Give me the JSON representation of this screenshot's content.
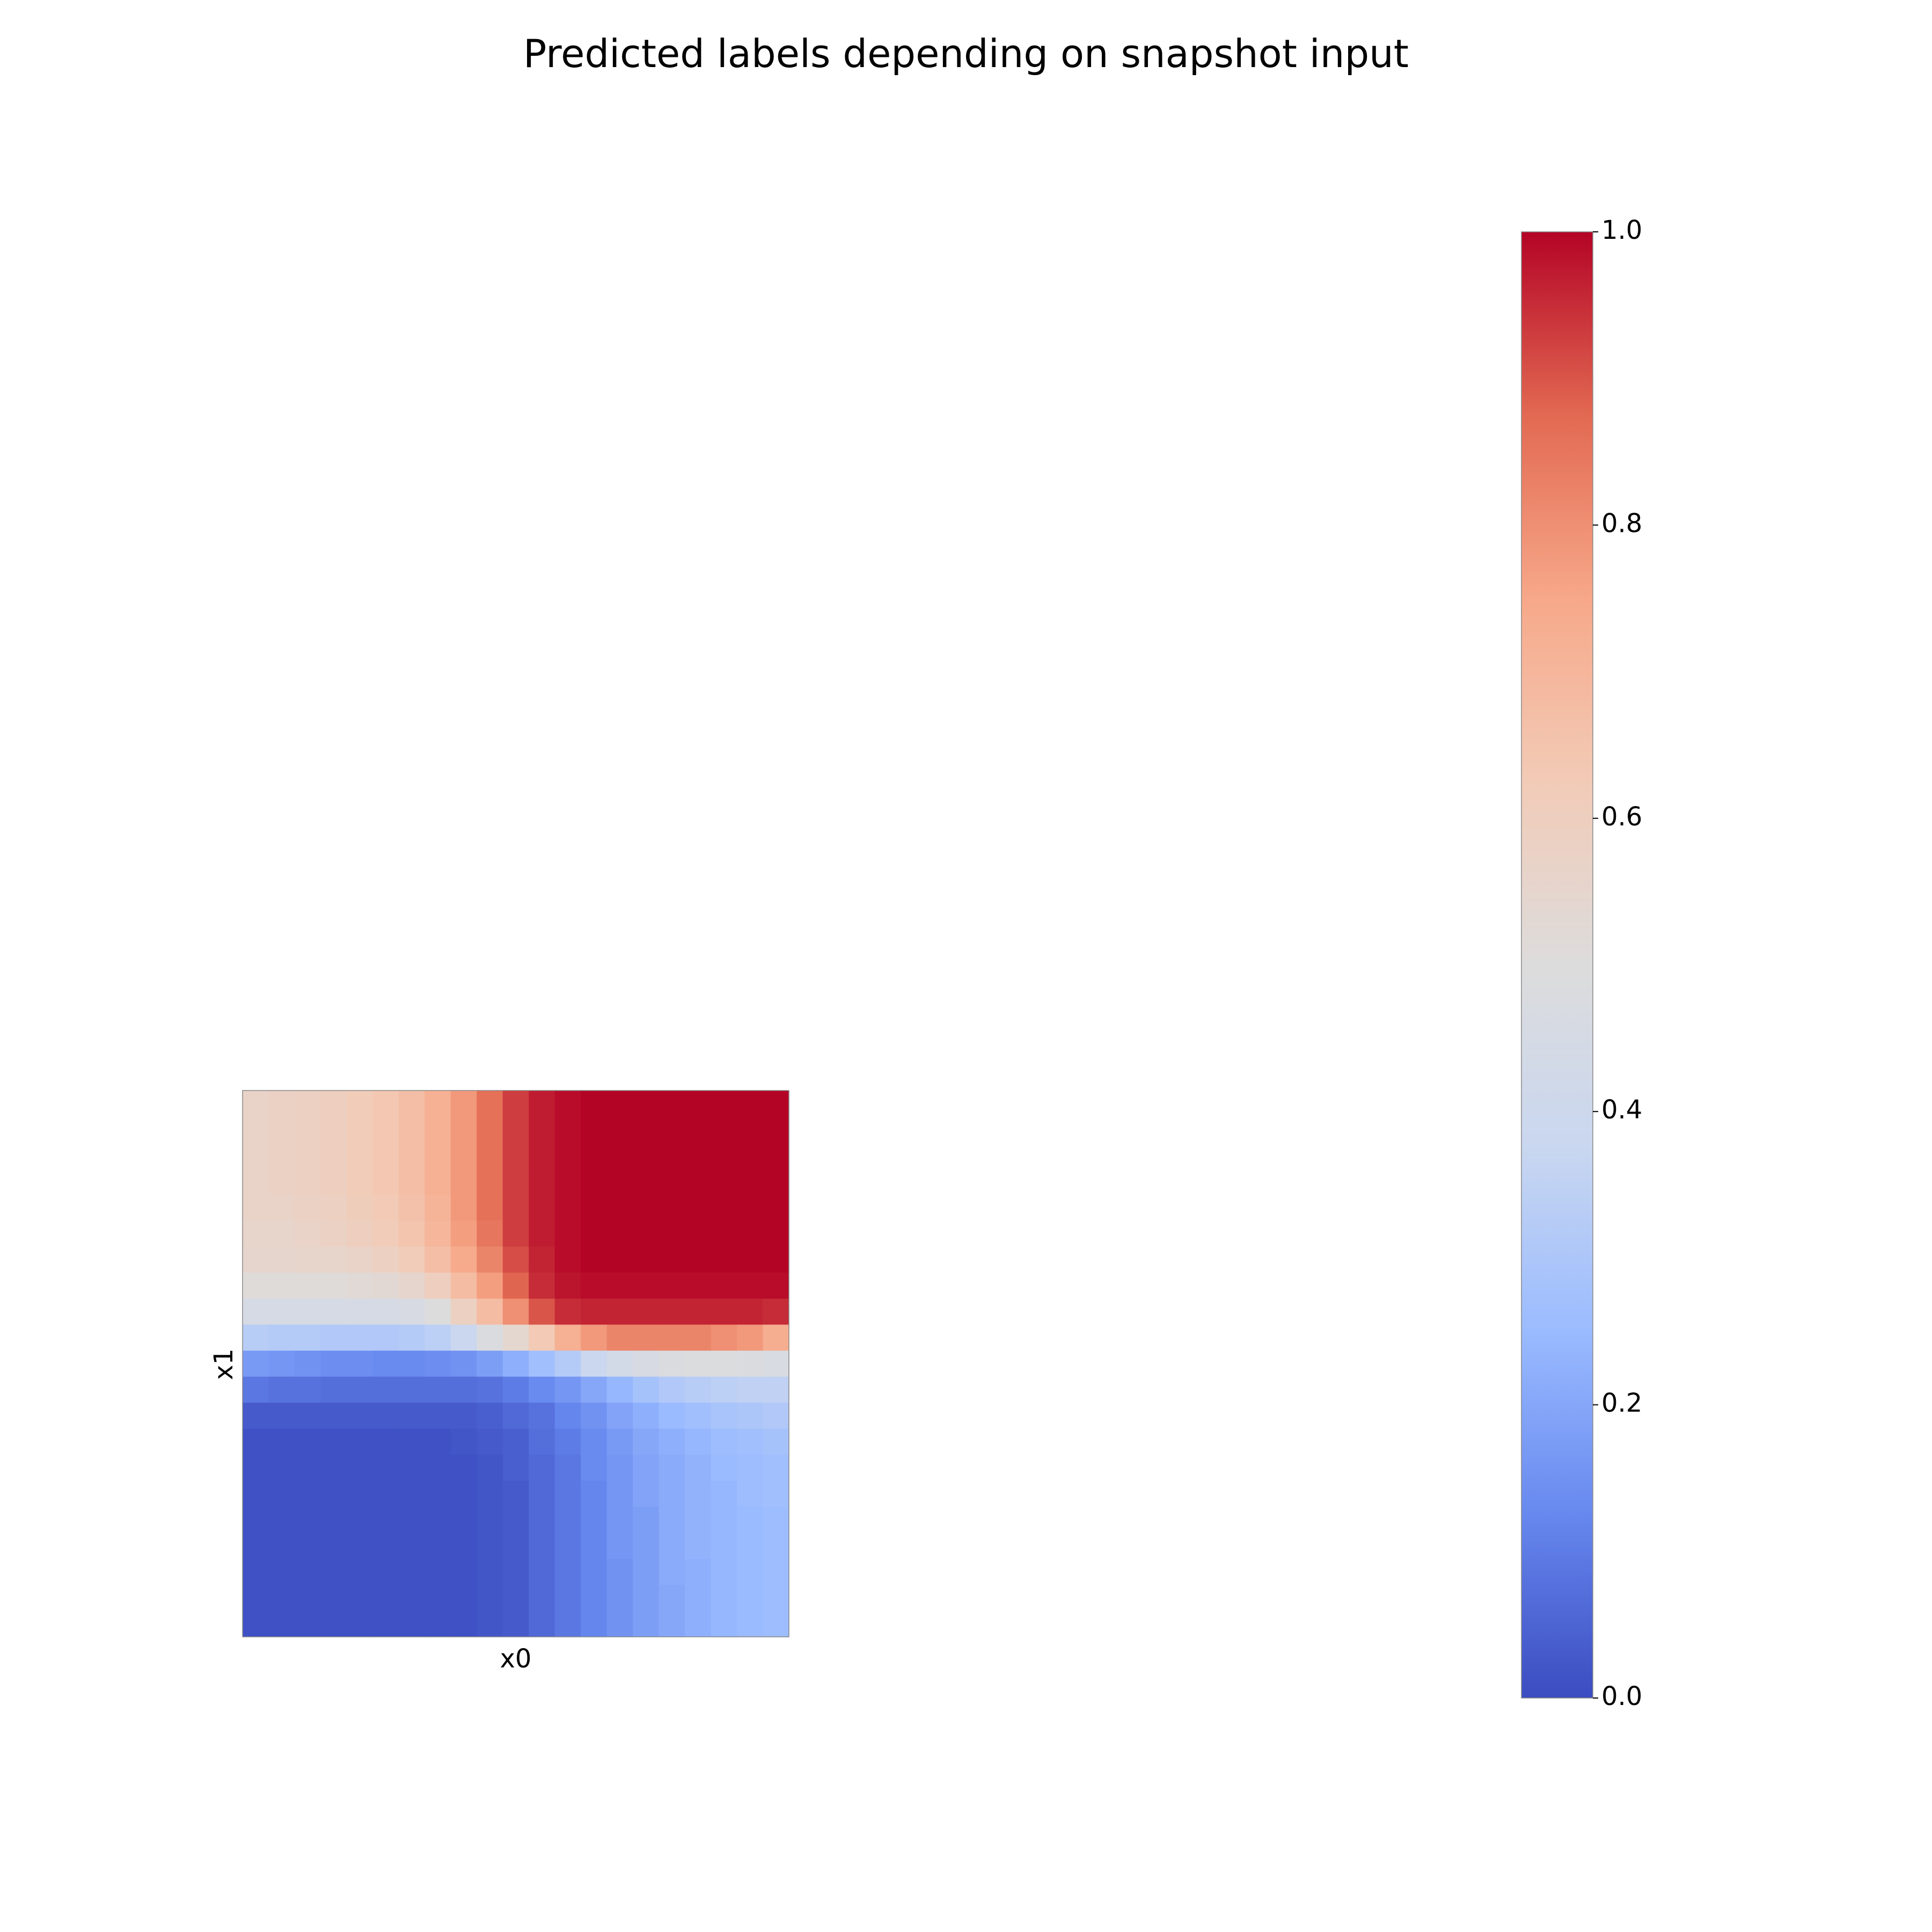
{
  "chart_data": {
    "type": "heatmap",
    "title": "Predicted labels depending on snapshot input",
    "xlabel": "x0",
    "ylabel": "x1",
    "colormap": "coolwarm",
    "colormap_stops": [
      "#3b4cc0",
      "#6788ee",
      "#9abbff",
      "#c9d7f0",
      "#dddcdc",
      "#f2cbb7",
      "#f7a889",
      "#e26952",
      "#b40426"
    ],
    "value_range": [
      0.0,
      1.0
    ],
    "colorbar_ticks": [
      "0.0",
      "0.2",
      "0.4",
      "0.6",
      "0.8",
      "1.0"
    ],
    "grid": false,
    "row_order": "top-to-bottom",
    "rows": 21,
    "cols": 21,
    "values": [
      [
        0.57,
        0.58,
        0.59,
        0.6,
        0.62,
        0.64,
        0.67,
        0.72,
        0.78,
        0.86,
        0.93,
        0.97,
        0.99,
        1.0,
        1.0,
        1.0,
        1.0,
        1.0,
        1.0,
        1.0,
        1.0
      ],
      [
        0.57,
        0.58,
        0.59,
        0.6,
        0.62,
        0.64,
        0.67,
        0.72,
        0.78,
        0.86,
        0.93,
        0.97,
        0.99,
        1.0,
        1.0,
        1.0,
        1.0,
        1.0,
        1.0,
        1.0,
        1.0
      ],
      [
        0.57,
        0.58,
        0.59,
        0.6,
        0.62,
        0.64,
        0.67,
        0.72,
        0.78,
        0.86,
        0.93,
        0.97,
        0.99,
        1.0,
        1.0,
        1.0,
        1.0,
        1.0,
        1.0,
        1.0,
        1.0
      ],
      [
        0.57,
        0.58,
        0.59,
        0.6,
        0.62,
        0.64,
        0.67,
        0.72,
        0.78,
        0.86,
        0.93,
        0.97,
        0.99,
        1.0,
        1.0,
        1.0,
        1.0,
        1.0,
        1.0,
        1.0,
        1.0
      ],
      [
        0.57,
        0.57,
        0.58,
        0.59,
        0.61,
        0.63,
        0.66,
        0.71,
        0.78,
        0.86,
        0.93,
        0.97,
        0.99,
        1.0,
        1.0,
        1.0,
        1.0,
        1.0,
        1.0,
        1.0,
        1.0
      ],
      [
        0.56,
        0.56,
        0.57,
        0.58,
        0.6,
        0.62,
        0.65,
        0.7,
        0.77,
        0.85,
        0.93,
        0.97,
        0.99,
        1.0,
        1.0,
        1.0,
        1.0,
        1.0,
        1.0,
        1.0,
        1.0
      ],
      [
        0.55,
        0.55,
        0.56,
        0.56,
        0.57,
        0.59,
        0.62,
        0.67,
        0.74,
        0.82,
        0.91,
        0.96,
        0.99,
        1.0,
        1.0,
        1.0,
        1.0,
        1.0,
        1.0,
        1.0,
        1.0
      ],
      [
        0.51,
        0.51,
        0.51,
        0.51,
        0.52,
        0.53,
        0.55,
        0.6,
        0.68,
        0.77,
        0.88,
        0.95,
        0.98,
        0.99,
        0.99,
        0.99,
        0.99,
        0.99,
        0.99,
        0.99,
        0.99
      ],
      [
        0.45,
        0.45,
        0.45,
        0.45,
        0.45,
        0.45,
        0.46,
        0.5,
        0.59,
        0.68,
        0.8,
        0.9,
        0.95,
        0.96,
        0.96,
        0.96,
        0.96,
        0.96,
        0.96,
        0.96,
        0.95
      ],
      [
        0.33,
        0.32,
        0.32,
        0.31,
        0.31,
        0.31,
        0.32,
        0.34,
        0.38,
        0.48,
        0.54,
        0.63,
        0.72,
        0.78,
        0.82,
        0.82,
        0.82,
        0.82,
        0.8,
        0.78,
        0.73
      ],
      [
        0.17,
        0.16,
        0.15,
        0.14,
        0.14,
        0.13,
        0.13,
        0.14,
        0.15,
        0.18,
        0.22,
        0.27,
        0.32,
        0.38,
        0.43,
        0.46,
        0.48,
        0.49,
        0.49,
        0.48,
        0.47
      ],
      [
        0.09,
        0.08,
        0.08,
        0.07,
        0.07,
        0.07,
        0.07,
        0.07,
        0.07,
        0.08,
        0.1,
        0.13,
        0.16,
        0.2,
        0.24,
        0.28,
        0.31,
        0.33,
        0.34,
        0.35,
        0.35
      ],
      [
        0.03,
        0.03,
        0.03,
        0.03,
        0.03,
        0.03,
        0.03,
        0.03,
        0.03,
        0.04,
        0.06,
        0.08,
        0.12,
        0.15,
        0.19,
        0.22,
        0.25,
        0.27,
        0.29,
        0.3,
        0.31
      ],
      [
        0.01,
        0.01,
        0.01,
        0.01,
        0.01,
        0.01,
        0.01,
        0.01,
        0.02,
        0.03,
        0.04,
        0.07,
        0.1,
        0.13,
        0.17,
        0.2,
        0.22,
        0.24,
        0.26,
        0.27,
        0.28
      ],
      [
        0.01,
        0.01,
        0.01,
        0.01,
        0.01,
        0.01,
        0.01,
        0.01,
        0.01,
        0.02,
        0.04,
        0.06,
        0.09,
        0.13,
        0.16,
        0.19,
        0.21,
        0.23,
        0.25,
        0.26,
        0.27
      ],
      [
        0.01,
        0.01,
        0.01,
        0.01,
        0.01,
        0.01,
        0.01,
        0.01,
        0.01,
        0.02,
        0.03,
        0.06,
        0.09,
        0.12,
        0.16,
        0.19,
        0.21,
        0.23,
        0.24,
        0.26,
        0.27
      ],
      [
        0.01,
        0.01,
        0.01,
        0.01,
        0.01,
        0.01,
        0.01,
        0.01,
        0.01,
        0.02,
        0.03,
        0.06,
        0.09,
        0.12,
        0.16,
        0.18,
        0.21,
        0.23,
        0.24,
        0.25,
        0.26
      ],
      [
        0.01,
        0.01,
        0.01,
        0.01,
        0.01,
        0.01,
        0.01,
        0.01,
        0.01,
        0.02,
        0.03,
        0.06,
        0.09,
        0.12,
        0.16,
        0.18,
        0.21,
        0.23,
        0.24,
        0.25,
        0.26
      ],
      [
        0.01,
        0.01,
        0.01,
        0.01,
        0.01,
        0.01,
        0.01,
        0.01,
        0.01,
        0.02,
        0.03,
        0.06,
        0.09,
        0.12,
        0.15,
        0.18,
        0.21,
        0.22,
        0.24,
        0.25,
        0.26
      ],
      [
        0.01,
        0.01,
        0.01,
        0.01,
        0.01,
        0.01,
        0.01,
        0.01,
        0.01,
        0.02,
        0.03,
        0.06,
        0.09,
        0.12,
        0.15,
        0.18,
        0.2,
        0.22,
        0.24,
        0.25,
        0.26
      ],
      [
        0.01,
        0.01,
        0.01,
        0.01,
        0.01,
        0.01,
        0.01,
        0.01,
        0.01,
        0.02,
        0.03,
        0.06,
        0.09,
        0.12,
        0.15,
        0.18,
        0.2,
        0.22,
        0.24,
        0.25,
        0.26
      ]
    ]
  }
}
